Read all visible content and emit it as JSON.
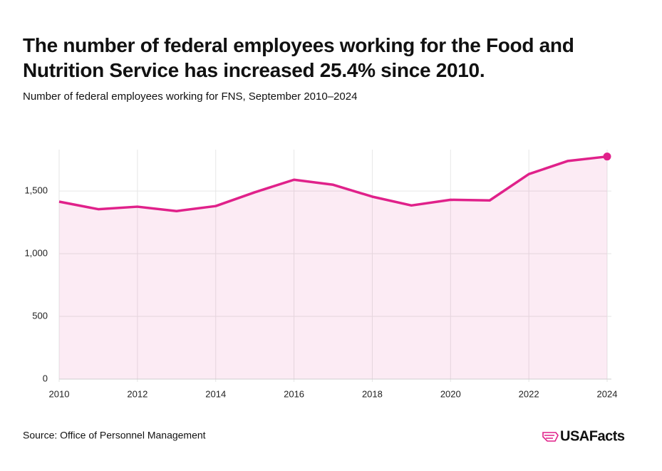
{
  "chart_data": {
    "type": "line",
    "title": "The number of federal employees working for the Food and Nutrition Service has increased 25.4% since 2010.",
    "subtitle": "Number of federal employees working for FNS, September 2010–2024",
    "source": "Source: Office of Personnel Management",
    "logo": "USAFacts",
    "x": [
      2010,
      2011,
      2012,
      2013,
      2014,
      2015,
      2016,
      2017,
      2018,
      2019,
      2020,
      2021,
      2022,
      2023,
      2024
    ],
    "series": [
      {
        "name": "FNS employees",
        "color": "#e0218a",
        "values": [
          1415,
          1355,
          1375,
          1340,
          1380,
          1490,
          1590,
          1550,
          1455,
          1385,
          1430,
          1425,
          1635,
          1740,
          1775
        ]
      }
    ],
    "xlim": [
      2010,
      2024
    ],
    "xticks": [
      2010,
      2012,
      2014,
      2016,
      2018,
      2020,
      2022,
      2024
    ],
    "ylim": [
      0,
      1830
    ],
    "yticks": [
      0,
      500,
      {
        "value": 1000,
        "label": "1,000"
      },
      {
        "value": 1500,
        "label": "1,500"
      }
    ],
    "grid": true
  }
}
